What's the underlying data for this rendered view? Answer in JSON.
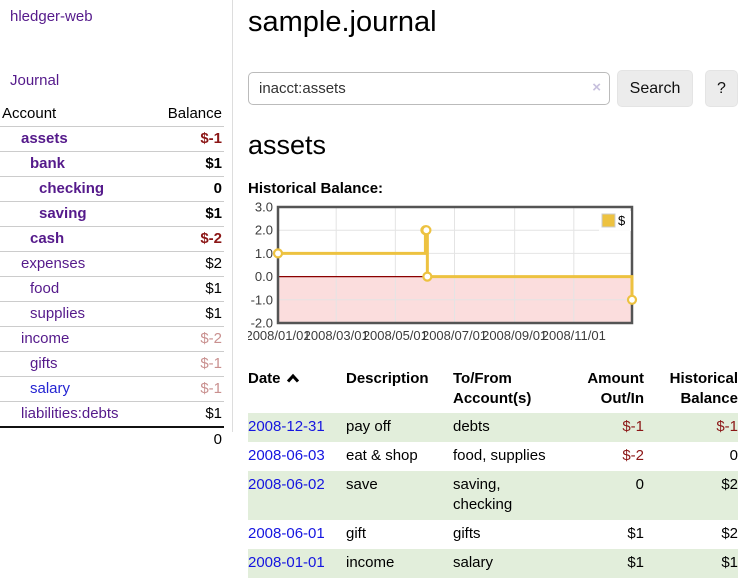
{
  "app": {
    "brand": "hledger-web",
    "nav_journal": "Journal"
  },
  "sidebar": {
    "header_account": "Account",
    "header_balance": "Balance",
    "accounts": [
      {
        "name": "assets",
        "indent": 0,
        "bold": true,
        "balance": "$-1",
        "balance_style": "neg-strong"
      },
      {
        "name": "bank",
        "indent": 1,
        "bold": true,
        "balance": "$1",
        "balance_style": "normal"
      },
      {
        "name": "checking",
        "indent": 2,
        "bold": true,
        "balance": "0",
        "balance_style": "normal"
      },
      {
        "name": "saving",
        "indent": 2,
        "bold": true,
        "balance": "$1",
        "balance_style": "normal"
      },
      {
        "name": "cash",
        "indent": 1,
        "bold": true,
        "balance": "$-2",
        "balance_style": "neg-strong"
      },
      {
        "name": "expenses",
        "indent": 0,
        "bold": false,
        "balance": "$2",
        "balance_style": "normal"
      },
      {
        "name": "food",
        "indent": 1,
        "bold": false,
        "balance": "$1",
        "balance_style": "normal"
      },
      {
        "name": "supplies",
        "indent": 1,
        "bold": false,
        "balance": "$1",
        "balance_style": "normal"
      },
      {
        "name": "income",
        "indent": 0,
        "bold": false,
        "balance": "$-2",
        "balance_style": "neg-soft"
      },
      {
        "name": "gifts",
        "indent": 1,
        "bold": false,
        "balance": "$-1",
        "balance_style": "neg-soft"
      },
      {
        "name": "salary",
        "indent": 1,
        "bold": false,
        "balance": "$-1",
        "balance_style": "neg-soft",
        "link_color": "blue"
      },
      {
        "name": "liabilities:debts",
        "indent": 0,
        "bold": false,
        "balance": "$1",
        "balance_style": "normal"
      }
    ],
    "total": "0"
  },
  "header": {
    "title": "sample.journal"
  },
  "search": {
    "value": "inacct:assets",
    "clear_icon": "×",
    "button_label": "Search",
    "help_label": "?"
  },
  "account_page": {
    "heading": "assets",
    "chart_label": "Historical Balance:"
  },
  "chart_data": {
    "type": "line",
    "step": true,
    "title": "Historical Balance",
    "series": [
      {
        "name": "$",
        "color": "#edc240",
        "points": [
          [
            "2008-01-01",
            1
          ],
          [
            "2008-06-01",
            2
          ],
          [
            "2008-06-02",
            2
          ],
          [
            "2008-06-03",
            0
          ],
          [
            "2008-12-31",
            -1
          ]
        ]
      }
    ],
    "xlim": [
      "2008-01-01",
      "2008-12-31"
    ],
    "ylim": [
      -2,
      3
    ],
    "x_ticks": [
      {
        "date": "2008-01-01",
        "label": "2008/01/01"
      },
      {
        "date": "2008-03-01",
        "label": "2008/03/01"
      },
      {
        "date": "2008-05-01",
        "label": "2008/05/01"
      },
      {
        "date": "2008-07-01",
        "label": "2008/07/01"
      },
      {
        "date": "2008-09-01",
        "label": "2008/09/01"
      },
      {
        "date": "2008-11-01",
        "label": "2008/11/01"
      }
    ],
    "y_ticks": [
      "3.0",
      "2.0",
      "1.0",
      "0.0",
      "-1.0",
      "-2.0"
    ],
    "grid": true,
    "legend_position": "top-right",
    "colors": {
      "negative_fill": "#fbdddd",
      "zero_line": "#8b0000",
      "frame": "#545454",
      "gridline": "#e4e4e4",
      "tick_text": "#3c3c3c"
    }
  },
  "register": {
    "columns": [
      {
        "label": "Date",
        "align": "left",
        "sorted_asc": true
      },
      {
        "label": "Description",
        "align": "left"
      },
      {
        "label": "To/From Account(s)",
        "align": "left"
      },
      {
        "label": "Amount Out/In",
        "align": "right"
      },
      {
        "label": "Historical Balance",
        "align": "right"
      }
    ],
    "rows": [
      {
        "date": "2008-12-31",
        "description": "pay off",
        "accounts": "debts",
        "amount": "$-1",
        "amount_neg": true,
        "balance": "$-1",
        "balance_neg": true,
        "green": true
      },
      {
        "date": "2008-06-03",
        "description": "eat & shop",
        "accounts": "food, supplies",
        "amount": "$-2",
        "amount_neg": true,
        "balance": "0",
        "balance_neg": false,
        "green": false
      },
      {
        "date": "2008-06-02",
        "description": "save",
        "accounts": "saving,\nchecking",
        "amount": "0",
        "amount_neg": false,
        "balance": "$2",
        "balance_neg": false,
        "green": true
      },
      {
        "date": "2008-06-01",
        "description": "gift",
        "accounts": "gifts",
        "amount": "$1",
        "amount_neg": false,
        "balance": "$2",
        "balance_neg": false,
        "green": false
      },
      {
        "date": "2008-01-01",
        "description": "income",
        "accounts": "salary",
        "amount": "$1",
        "amount_neg": false,
        "balance": "$1",
        "balance_neg": false,
        "green": true
      }
    ]
  }
}
